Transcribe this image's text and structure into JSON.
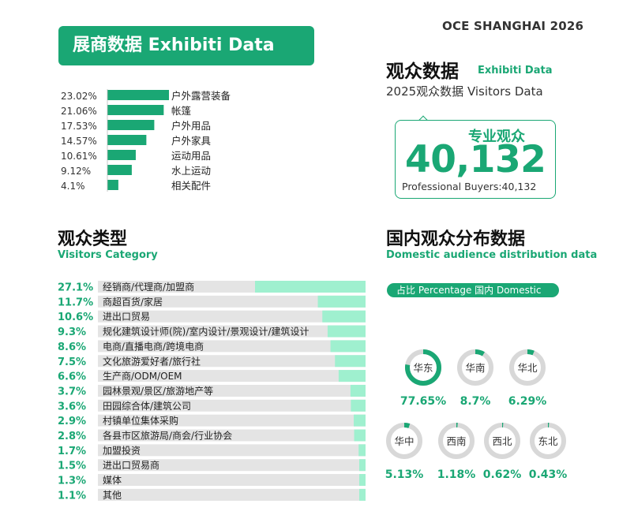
{
  "header": {
    "event": "OCE SHANGHAI 2026"
  },
  "exhibitor": {
    "banner": "展商数据 Exhibiti Data"
  },
  "audience": {
    "title": "观众数据",
    "title_en": "Exhibiti Data",
    "subtitle": "2025观众数据 Visitors Data",
    "callout_label": "专业观众",
    "callout_value": "40,132",
    "callout_caption": "Professional Buyers:40,132"
  },
  "visitor_category": {
    "title": "观众类型",
    "subtitle": "Visitors Category"
  },
  "domestic": {
    "title": "国内观众分布数据",
    "subtitle": "Domestic audience distribution data",
    "legend": "占比 Percentage   国内 Domestic"
  },
  "colors": {
    "green": "#1aa774",
    "mint": "#9ff0cf",
    "gray": "#e4e4e4",
    "donut_bg": "#d8d8d8"
  },
  "chart_data": [
    {
      "type": "bar",
      "orientation": "horizontal",
      "title": "",
      "categories": [
        "户外露营装备",
        "帐篷",
        "户外用品",
        "户外家具",
        "运动用品",
        "水上运动",
        "相关配件"
      ],
      "values": [
        23.02,
        21.06,
        17.53,
        14.57,
        10.61,
        9.12,
        4.1
      ],
      "labels": [
        "23.02%",
        "21.06%",
        "17.53%",
        "14.57%",
        "10.61%",
        "9.12%",
        "4.1%"
      ]
    },
    {
      "type": "bar",
      "orientation": "horizontal",
      "title": "观众类型",
      "categories": [
        "经销商/代理商/加盟商",
        "商超百货/家居",
        "进出口贸易",
        "规化建筑设计师(院)/室内设计/景观设计/建筑设计",
        "电商/直播电商/跨境电商",
        "文化旅游爱好者/旅行社",
        "生产商/ODM/OEM",
        "园林景观/景区/旅游地产等",
        "田园综合体/建筑公司",
        "村镇单位集体采购",
        "各县市区旅游局/商会/行业协会",
        "加盟投资",
        "进出口贸易商",
        "媒体",
        "其他"
      ],
      "values": [
        27.1,
        11.7,
        10.6,
        9.3,
        8.6,
        7.5,
        6.6,
        3.7,
        3.6,
        2.9,
        2.8,
        1.7,
        1.5,
        1.3,
        1.1
      ],
      "labels": [
        "27.1%",
        "11.7%",
        "10.6%",
        "9.3%",
        "8.6%",
        "7.5%",
        "6.6%",
        "3.7%",
        "3.6%",
        "2.9%",
        "2.8%",
        "1.7%",
        "1.5%",
        "1.3%",
        "1.1%"
      ]
    },
    {
      "type": "pie",
      "title": "国内观众分布数据",
      "categories": [
        "华东",
        "华南",
        "华北",
        "华中",
        "西南",
        "西北",
        "东北"
      ],
      "values": [
        77.65,
        8.7,
        6.29,
        5.13,
        1.18,
        0.62,
        0.43
      ],
      "labels": [
        "77.65%",
        "8.7%",
        "6.29%",
        "5.13%",
        "1.18%",
        "0.62%",
        "0.43%"
      ]
    }
  ]
}
